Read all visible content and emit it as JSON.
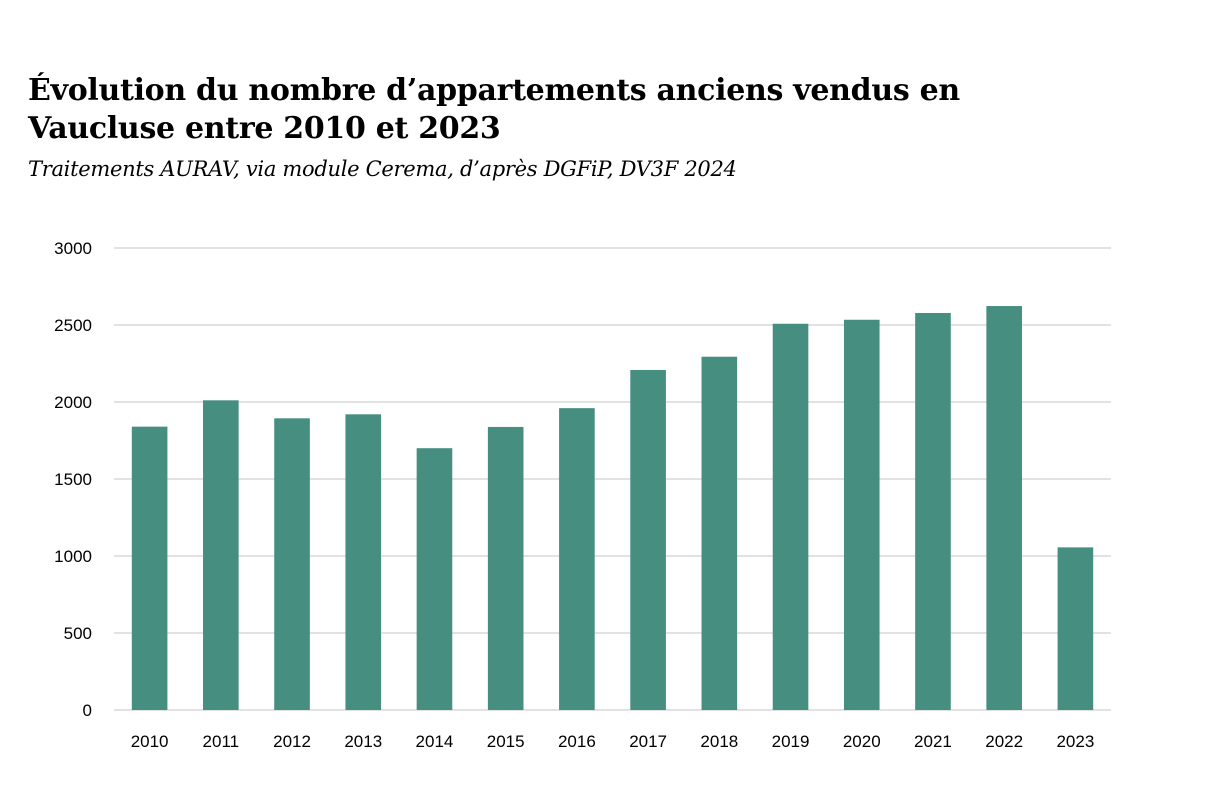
{
  "header": {
    "title_line1": "Évolution du nombre d’appartements anciens vendus en",
    "title_line2": "Vaucluse entre 2010 et 2023",
    "subtitle": "Traitements AURAV, via module Cerema, d’après DGFiP, DV3F 2024"
  },
  "colors": {
    "bar": "#458e80",
    "grid": "#d9d9d9",
    "text": "#000000"
  },
  "chart_data": {
    "type": "bar",
    "title": "Évolution du nombre d’appartements anciens vendus en Vaucluse entre 2010 et 2023",
    "subtitle": "Traitements AURAV, via module Cerema, d’après DGFiP, DV3F 2024",
    "xlabel": "",
    "ylabel": "",
    "categories": [
      "2010",
      "2011",
      "2012",
      "2013",
      "2014",
      "2015",
      "2016",
      "2017",
      "2018",
      "2019",
      "2020",
      "2021",
      "2022",
      "2023"
    ],
    "values": [
      1840,
      2011,
      1894,
      1920,
      1700,
      1838,
      1960,
      2208,
      2294,
      2508,
      2534,
      2578,
      2623,
      1056
    ],
    "ylim": [
      0,
      3000
    ],
    "yticks": [
      "0",
      "500",
      "1000",
      "1500",
      "2000",
      "2500",
      "3000"
    ],
    "grid": true,
    "legend": "none"
  }
}
